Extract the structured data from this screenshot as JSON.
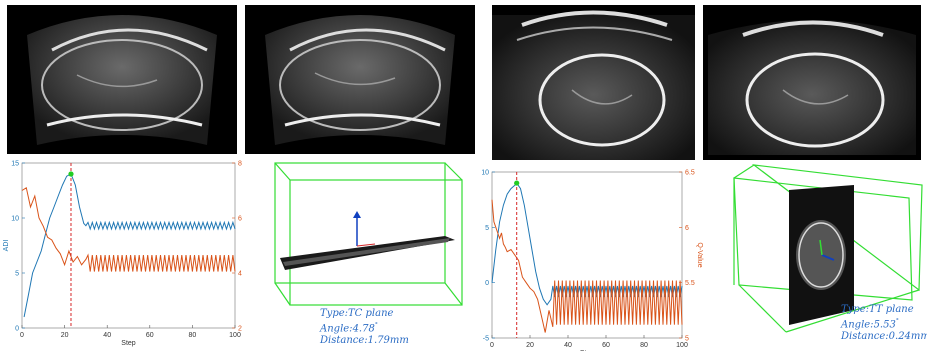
{
  "colors": {
    "adi": "#1f77b4",
    "q": "#d95319",
    "marker": "#d62728",
    "best": "#22cc22",
    "box": "#33dd33",
    "info": "#2b6cc4"
  },
  "left_case": {
    "plot": {
      "xlabel": "Step",
      "ylabel_left": "ADI",
      "ylabel_right": "Q-Value",
      "xticks": [
        "0",
        "20",
        "40",
        "60",
        "80",
        "100"
      ],
      "yticks_left": [
        "0",
        "5",
        "10",
        "15"
      ],
      "yticks_right": [
        "2",
        "4",
        "6",
        "8"
      ]
    },
    "info": {
      "type_label": "Type:",
      "type_value": "TC plane",
      "angle_label": "Angle:",
      "angle_value": "4.78",
      "angle_unit": "°",
      "distance_label": "Distance:",
      "distance_value": "1.79mm"
    }
  },
  "right_case": {
    "plot": {
      "xlabel": "Step",
      "ylabel_left": "ADI",
      "ylabel_right": "Q-Value",
      "xticks": [
        "0",
        "20",
        "40",
        "60",
        "80",
        "100"
      ],
      "yticks_left": [
        "-5",
        "0",
        "5",
        "10"
      ],
      "yticks_right": [
        "5",
        "5.5",
        "6",
        "6.5"
      ]
    },
    "info": {
      "type_label": "Type:",
      "type_value": "TT plane",
      "angle_label": "Angle:",
      "angle_value": "5.53",
      "angle_unit": "°",
      "distance_label": "Distance:",
      "distance_value": "0.24mm"
    }
  },
  "chart_data": [
    {
      "type": "line",
      "xlabel": "Step",
      "ylabel": "ADI",
      "ylabel_right": "Q-Value",
      "xlim": [
        0,
        100
      ],
      "ylim": [
        0,
        15
      ],
      "ylim_right": [
        2,
        8
      ],
      "best_step": 23,
      "series": [
        {
          "name": "ADI",
          "axis": "left",
          "x": [
            1,
            3,
            5,
            7,
            9,
            11,
            13,
            15,
            17,
            19,
            21,
            23,
            25,
            27,
            29,
            30
          ],
          "y": [
            1,
            3,
            5,
            6,
            7,
            8.5,
            10,
            11,
            12,
            13,
            13.8,
            14,
            13,
            11,
            9.5,
            9.3
          ],
          "oscillate": {
            "from": 30,
            "to": 100,
            "center": 9.3,
            "amp": 0.3,
            "period": 2
          }
        },
        {
          "name": "Q-Value",
          "axis": "right",
          "x": [
            0,
            2,
            4,
            6,
            8,
            10,
            12,
            14,
            16,
            18,
            20,
            22,
            24,
            26,
            28,
            30
          ],
          "y": [
            7.0,
            7.1,
            6.4,
            6.8,
            6.0,
            5.7,
            5.3,
            5.2,
            4.9,
            4.7,
            4.3,
            4.8,
            4.4,
            4.6,
            4.3,
            4.5
          ],
          "oscillate": {
            "from": 30,
            "to": 100,
            "center": 4.35,
            "amp": 0.3,
            "period": 2
          }
        }
      ]
    },
    {
      "type": "line",
      "xlabel": "Step",
      "ylabel": "ADI",
      "ylabel_right": "Q-Value",
      "xlim": [
        0,
        100
      ],
      "ylim": [
        -5,
        10
      ],
      "ylim_right": [
        5,
        6.5
      ],
      "best_step": 13,
      "series": [
        {
          "name": "ADI",
          "axis": "left",
          "x": [
            0,
            2,
            4,
            6,
            8,
            10,
            12,
            13,
            15,
            17,
            19,
            21,
            23,
            25,
            27,
            29,
            31
          ],
          "y": [
            0,
            3,
            5.5,
            7,
            8,
            8.5,
            8.8,
            9,
            8.5,
            7,
            5,
            3,
            1,
            -0.5,
            -1.5,
            -2,
            -1.5
          ],
          "oscillate": {
            "from": 31,
            "to": 100,
            "center": -0.8,
            "amp": 0.5,
            "period": 2
          }
        },
        {
          "name": "Q-Value",
          "axis": "right",
          "x": [
            0,
            1,
            2,
            3,
            4,
            5,
            6,
            7,
            8,
            10,
            12,
            14,
            16,
            18,
            20,
            22,
            24,
            26,
            28,
            30,
            32
          ],
          "y": [
            6.25,
            6.05,
            6.0,
            5.95,
            5.9,
            5.95,
            5.85,
            5.82,
            5.78,
            5.8,
            5.75,
            5.7,
            5.55,
            5.5,
            5.45,
            5.42,
            5.35,
            5.2,
            5.05,
            5.25,
            5.1
          ],
          "oscillate": {
            "from": 32,
            "to": 100,
            "center": 5.32,
            "amp": 0.2,
            "period": 2
          }
        }
      ]
    }
  ]
}
